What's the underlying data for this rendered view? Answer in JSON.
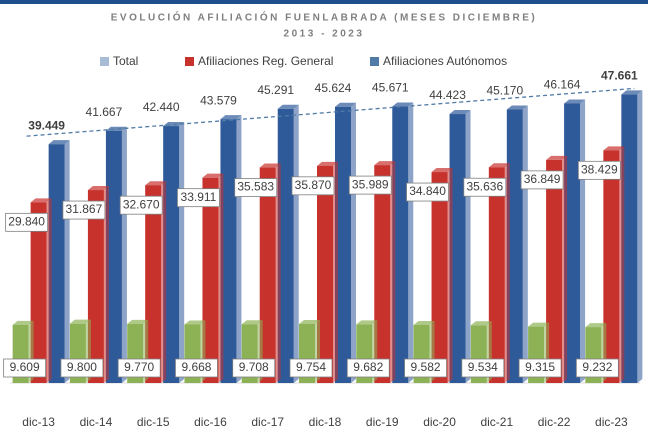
{
  "chart_data": {
    "type": "bar",
    "title": "EVOLUCIÓN AFILIACIÓN FUENLABRADA (MESES DICIEMBRE)",
    "subtitle": "2013 - 2023",
    "categories": [
      "dic-13",
      "dic-14",
      "dic-15",
      "dic-16",
      "dic-17",
      "dic-18",
      "dic-19",
      "dic-20",
      "dic-21",
      "dic-22",
      "dic-23"
    ],
    "series": [
      {
        "name": "Total",
        "color": "#2f5a9a",
        "legend_color": "#a9bcd6",
        "values": [
          39449,
          41667,
          42440,
          43579,
          45291,
          45624,
          45671,
          44423,
          45170,
          46164,
          47661
        ],
        "value_labels": [
          "39.449",
          "41.667",
          "42.440",
          "43.579",
          "45.291",
          "45.624",
          "45.671",
          "44.423",
          "45.170",
          "46.164",
          "47.661"
        ]
      },
      {
        "name": "Afiliaciones Reg. General",
        "color": "#c8322d",
        "legend_color": "#c8322d",
        "values": [
          29840,
          31867,
          32670,
          33911,
          35583,
          35870,
          35989,
          34840,
          35636,
          36849,
          38429
        ],
        "value_labels": [
          "29.840",
          "31.867",
          "32.670",
          "33.911",
          "35.583",
          "35.870",
          "35.989",
          "34.840",
          "35.636",
          "36.849",
          "38.429"
        ]
      },
      {
        "name": "Afiliaciones Autónomos",
        "color": "#8db255",
        "legend_color": "#4f7ba6",
        "values": [
          9609,
          9800,
          9770,
          9668,
          9708,
          9754,
          9682,
          9582,
          9534,
          9315,
          9232
        ],
        "value_labels": [
          "9.609",
          "9.800",
          "9.770",
          "9.668",
          "9.708",
          "9.754",
          "9.682",
          "9.582",
          "9.534",
          "9.315",
          "9.232"
        ]
      }
    ],
    "trendline": true
  }
}
